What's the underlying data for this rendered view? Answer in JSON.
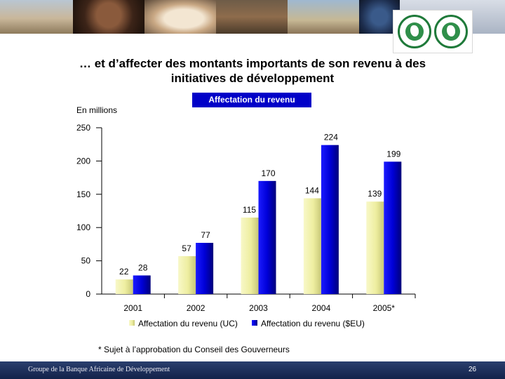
{
  "slide": {
    "title_line1": "… et d’affecter des montants importants de son revenu à des",
    "title_line2": "initiatives de développement",
    "chip_label": "Affectation du revenu",
    "unit_label": "En millions",
    "footnote": "* Sujet à l’approbation du Conseil des Gouverneurs",
    "footer_org": "Groupe de la Banque Africaine de Développement",
    "page_number": "26"
  },
  "chart_data": {
    "type": "bar",
    "categories": [
      "2001",
      "2002",
      "2003",
      "2004",
      "2005*"
    ],
    "series": [
      {
        "name": "Affectation du revenu (UC)",
        "values": [
          22,
          57,
          115,
          144,
          139
        ],
        "color": "#f0f0a8"
      },
      {
        "name": "Affectation du revenu ($EU)",
        "values": [
          28,
          77,
          170,
          224,
          199
        ],
        "color": "#0000cc"
      }
    ],
    "yticks": [
      0,
      50,
      100,
      150,
      200,
      250
    ],
    "ylim": [
      0,
      250
    ],
    "legend_position": "bottom",
    "grid": false
  },
  "colors": {
    "chip_bg": "#0000c8",
    "footer_bg": "#1c2c5c",
    "logo_green": "#1f7a3a"
  }
}
